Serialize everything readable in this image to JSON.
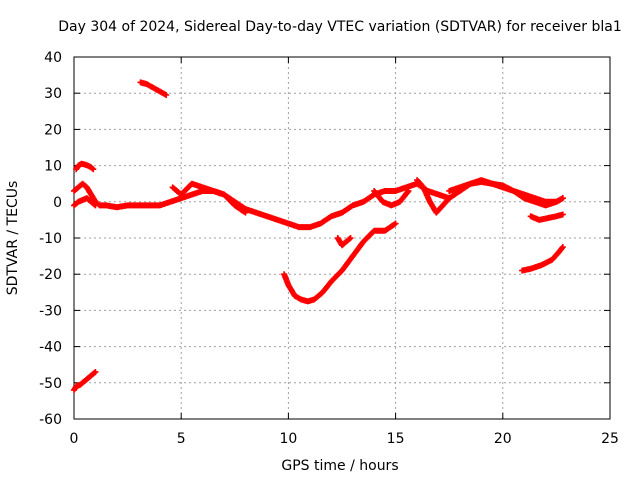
{
  "chart_data": {
    "type": "scatter",
    "title": "Day 304 of 2024, Sidereal Day-to-day VTEC variation (SDTVAR) for receiver bla1",
    "xlabel": "GPS time / hours",
    "ylabel": "SDTVAR / TECUs",
    "xlim": [
      0,
      25
    ],
    "ylim": [
      -60,
      40
    ],
    "xticks": [
      0,
      5,
      10,
      15,
      20,
      25
    ],
    "yticks": [
      -60,
      -50,
      -40,
      -30,
      -20,
      -10,
      0,
      10,
      20,
      30,
      40
    ],
    "grid": true,
    "marker": "plus",
    "color": "#ff0000",
    "series": [
      {
        "name": "seg-a",
        "x": [
          0.0,
          0.1,
          0.3,
          0.5,
          0.7,
          0.9,
          1.0
        ],
        "y": [
          -52,
          -51,
          -50.5,
          -49.5,
          -48.5,
          -47.5,
          -47
        ]
      },
      {
        "name": "seg-b",
        "x": [
          0.1,
          0.2,
          0.35,
          0.5,
          0.65,
          0.8,
          0.9
        ],
        "y": [
          9,
          10,
          10.5,
          10.3,
          10,
          9.5,
          9
        ]
      },
      {
        "name": "seg-c",
        "x": [
          0.0,
          0.2,
          0.4,
          0.6,
          0.8,
          1.0,
          1.2,
          1.5,
          2.0,
          2.5,
          3.0,
          3.5,
          4.0,
          4.5,
          5.0,
          5.5,
          6.0,
          6.5,
          7.0,
          7.5,
          8.0,
          8.5,
          9.0,
          9.5,
          10.0,
          10.5,
          11.0,
          11.5,
          12.0,
          12.5,
          13.0,
          13.5,
          14.0,
          14.5,
          15.0,
          15.5,
          16.0,
          16.5,
          17.0,
          17.5,
          18.0,
          18.5,
          19.0,
          19.5,
          20.0,
          20.5,
          21.0,
          21.5,
          22.0,
          22.5,
          22.8
        ],
        "y": [
          3,
          4,
          5,
          4,
          2,
          0,
          -1,
          -1,
          -1.5,
          -1,
          -1,
          -1,
          -1,
          0,
          1,
          2,
          3,
          3,
          2,
          0,
          -2,
          -3,
          -4,
          -5,
          -6,
          -7,
          -7,
          -6,
          -4,
          -3,
          -1,
          0,
          2,
          3,
          3,
          4,
          5,
          3,
          2,
          1,
          3,
          5,
          6,
          5,
          4,
          3,
          2,
          1,
          0,
          0,
          1
        ]
      },
      {
        "name": "seg-d",
        "x": [
          0.0,
          0.2,
          0.4,
          0.6,
          0.8,
          1.0
        ],
        "y": [
          -1,
          0,
          0.5,
          1,
          0,
          -1
        ]
      },
      {
        "name": "seg-e",
        "x": [
          3.1,
          3.4,
          3.7,
          4.0,
          4.3
        ],
        "y": [
          33,
          32.5,
          31.5,
          30.5,
          29.5
        ]
      },
      {
        "name": "seg-f",
        "x": [
          4.6,
          5.0,
          5.5,
          6.0,
          6.5,
          7.0,
          7.5,
          8.0
        ],
        "y": [
          4,
          2,
          5,
          4,
          3,
          2,
          -1,
          -3
        ]
      },
      {
        "name": "seg-g",
        "x": [
          9.8,
          10.0,
          10.3,
          10.6,
          10.9,
          11.2,
          11.6,
          12.0,
          12.5,
          13.0,
          13.5,
          14.0,
          14.5,
          15.0
        ],
        "y": [
          -20,
          -23,
          -26,
          -27,
          -27.5,
          -27,
          -25,
          -22,
          -19,
          -15,
          -11,
          -8,
          -8,
          -6
        ]
      },
      {
        "name": "seg-h",
        "x": [
          12.3,
          12.5,
          12.7,
          12.9
        ],
        "y": [
          -10,
          -12,
          -11,
          -10
        ]
      },
      {
        "name": "seg-i",
        "x": [
          14.0,
          14.4,
          14.8,
          15.2,
          15.6
        ],
        "y": [
          3,
          0,
          -1,
          0,
          3
        ]
      },
      {
        "name": "seg-j",
        "x": [
          16.0,
          16.3,
          16.6,
          16.9,
          17.2,
          17.5
        ],
        "y": [
          6,
          4,
          0,
          -3,
          -1,
          1
        ]
      },
      {
        "name": "seg-k",
        "x": [
          17.5,
          18.0,
          18.5,
          19.0,
          19.5,
          20.0,
          20.5,
          21.0,
          21.5,
          22.0,
          22.5,
          22.8
        ],
        "y": [
          3,
          4,
          5,
          5.5,
          5,
          4.5,
          3,
          1,
          0,
          -1,
          0,
          1
        ]
      },
      {
        "name": "seg-l",
        "x": [
          21.3,
          21.7,
          22.1,
          22.5,
          22.8
        ],
        "y": [
          -4,
          -5,
          -4.5,
          -4,
          -3.5
        ]
      },
      {
        "name": "seg-m",
        "x": [
          20.9,
          21.3,
          21.8,
          22.3,
          22.6,
          22.8
        ],
        "y": [
          -19,
          -18.5,
          -17.5,
          -16,
          -14,
          -12.5
        ]
      }
    ]
  }
}
